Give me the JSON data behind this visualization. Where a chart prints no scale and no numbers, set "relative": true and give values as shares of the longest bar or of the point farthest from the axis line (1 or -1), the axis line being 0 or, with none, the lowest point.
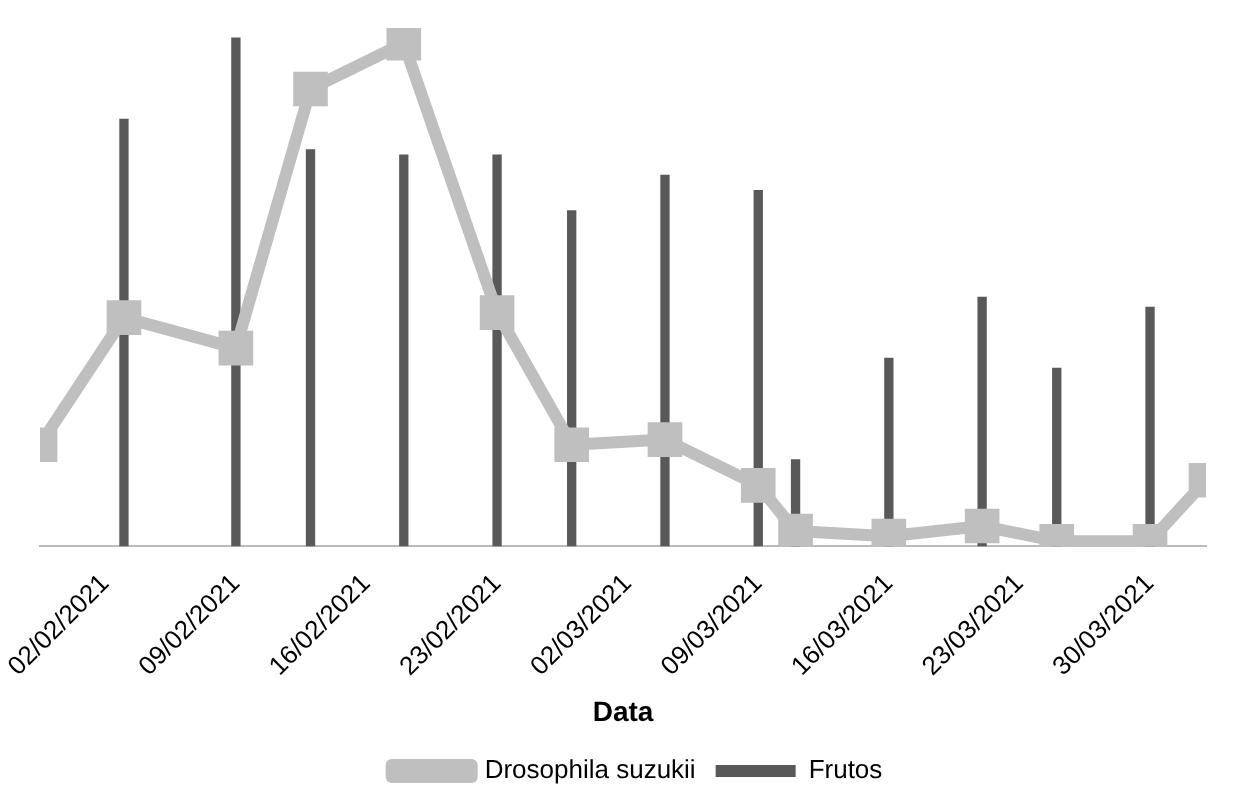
{
  "chart_data": {
    "type": "bar",
    "relative": true,
    "xlabel": "Data",
    "legend": "bottom",
    "grid": false,
    "xlim": [
      "2021-01-29T12:00",
      "2021-04-02T00:00"
    ],
    "xticks": [
      {
        "value": "2021-02-02",
        "label": "02/02/2021"
      },
      {
        "value": "2021-02-09",
        "label": "09/02/2021"
      },
      {
        "value": "2021-02-16",
        "label": "16/02/2021"
      },
      {
        "value": "2021-02-23",
        "label": "23/02/2021"
      },
      {
        "value": "2021-03-02",
        "label": "02/03/2021"
      },
      {
        "value": "2021-03-09",
        "label": "09/03/2021"
      },
      {
        "value": "2021-03-16",
        "label": "16/03/2021"
      },
      {
        "value": "2021-03-23",
        "label": "23/03/2021"
      },
      {
        "value": "2021-03-30",
        "label": "30/03/2021"
      }
    ],
    "series": [
      {
        "name": "Frutos",
        "color": "#595959",
        "x": [
          "2021-02-03",
          "2021-02-09",
          "2021-02-13",
          "2021-02-18",
          "2021-02-23",
          "2021-02-27",
          "2021-03-04",
          "2021-03-09",
          "2021-03-11",
          "2021-03-16",
          "2021-03-21",
          "2021-03-25",
          "2021-03-30"
        ],
        "values": [
          0.84,
          1,
          0.78,
          0.77,
          0.77,
          0.66,
          0.73,
          0.7,
          0.17,
          0.37,
          0.49,
          0.35,
          0.47
        ]
      },
      {
        "name": "Drosophila suzukii",
        "type": "line",
        "color": "#bfbfbf",
        "marker": "square",
        "x": [
          "2021-01-29T12:00",
          "2021-02-03",
          "2021-02-09",
          "2021-02-13",
          "2021-02-18",
          "2021-02-23",
          "2021-02-27",
          "2021-03-04",
          "2021-03-09",
          "2021-03-11",
          "2021-03-16",
          "2021-03-21",
          "2021-03-25",
          "2021-03-30",
          "2021-04-02T00:00"
        ],
        "values": [
          0.2,
          0.45,
          0.39,
          0.9,
          0.99,
          0.46,
          0.2,
          0.21,
          0.12,
          0.03,
          0.02,
          0.04,
          0.01,
          0.01,
          0.13
        ]
      }
    ]
  }
}
